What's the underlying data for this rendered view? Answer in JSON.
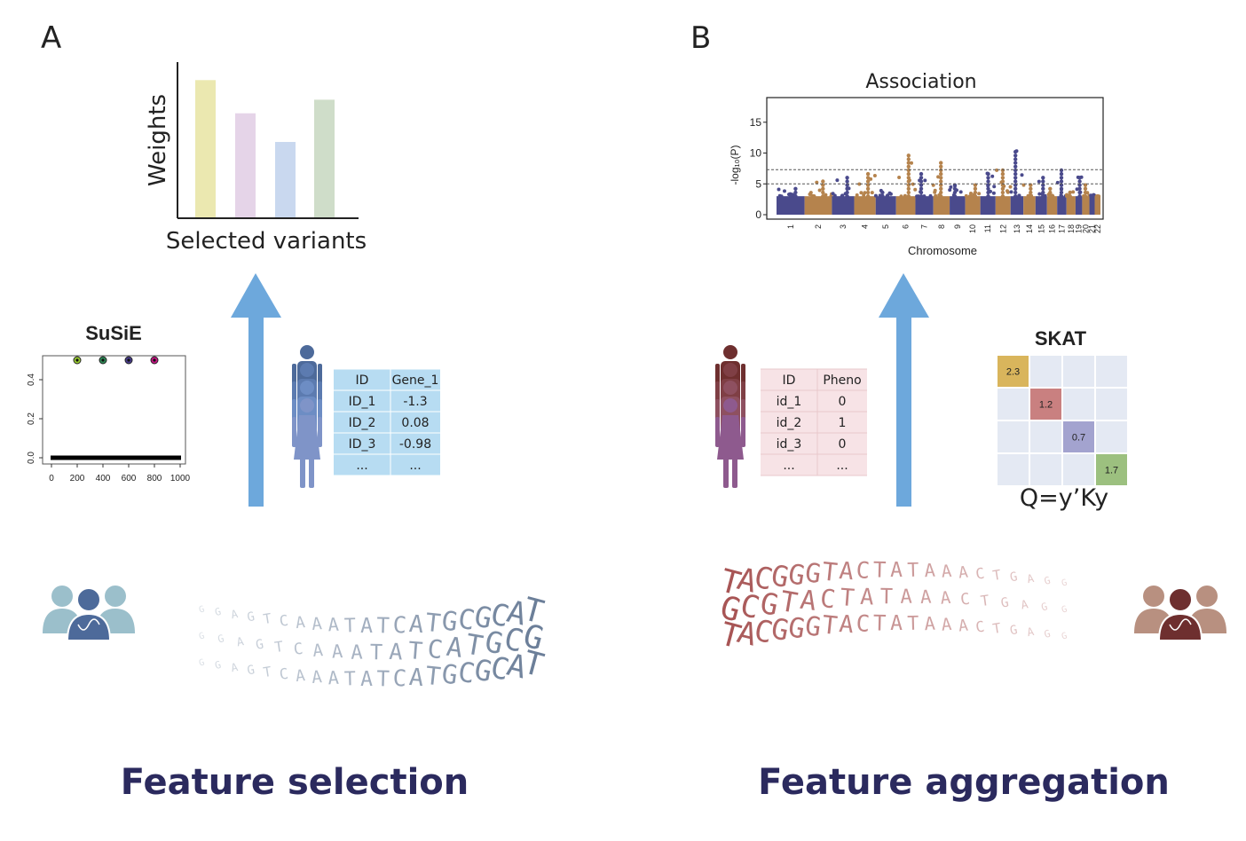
{
  "panels": {
    "a": {
      "letter": "A",
      "title": "Feature selection",
      "weights_chart": {
        "ylabel": "Weights",
        "xlabel": "Selected variants",
        "bars": [
          {
            "value": 0.91,
            "color": "#ebe8b0"
          },
          {
            "value": 0.69,
            "color": "#e5d4e8"
          },
          {
            "value": 0.5,
            "color": "#c9d8ef"
          },
          {
            "value": 0.78,
            "color": "#cfddc9"
          }
        ]
      },
      "susie_plot": {
        "title": "SuSiE",
        "yticks": [
          "0.0",
          "0.2",
          "0.4"
        ],
        "xticks": [
          "0",
          "200",
          "400",
          "600",
          "800",
          "1000"
        ],
        "xlim": [
          0,
          1000
        ],
        "ylim": [
          0,
          0.5
        ],
        "signals": [
          {
            "x": 200,
            "y": 0.5,
            "color": "#9acd32"
          },
          {
            "x": 400,
            "y": 0.5,
            "color": "#2e8b57"
          },
          {
            "x": 600,
            "y": 0.5,
            "color": "#483d8b"
          },
          {
            "x": 800,
            "y": 0.5,
            "color": "#c71585"
          }
        ]
      },
      "table": {
        "headers": [
          "ID",
          "Gene_1"
        ],
        "rows": [
          [
            "ID_1",
            "-1.3"
          ],
          [
            "ID_2",
            "0.08"
          ],
          [
            "ID_3",
            "-0.98"
          ],
          [
            "...",
            "..."
          ]
        ],
        "fill": "#b7dcf2"
      },
      "person_colors": [
        "#4d6a9a",
        "#5c7bb0",
        "#6d8dc4",
        "#7f94c8"
      ],
      "arrow_color": "#6da8dc",
      "dna_lines": [
        "GGAGTCAAATATCATGCGCAT",
        "GGAGTCAAATATCATGCG",
        "GGAGTCAAATATCATGCGCAT"
      ],
      "dna_color": "#6c7f99"
    },
    "b": {
      "letter": "B",
      "title": "Feature aggregation",
      "manhattan": {
        "title": "Association",
        "ylabel": "-log₁₀(P)",
        "xlabel": "Chromosome",
        "yticks": [
          "0",
          "5",
          "10",
          "15"
        ],
        "ylim": [
          0,
          19
        ],
        "chromosomes": [
          "1",
          "2",
          "3",
          "4",
          "5",
          "6",
          "7",
          "8",
          "9",
          "10",
          "11",
          "12",
          "13",
          "14",
          "15",
          "16",
          "17",
          "18",
          "19",
          "20",
          "21",
          "22"
        ],
        "peaks": [
          4.5,
          5.5,
          6.5,
          7,
          4,
          10,
          7,
          8.5,
          5,
          5,
          7,
          7.5,
          10.5,
          5,
          6,
          4.5,
          7.5,
          4,
          6.5,
          5,
          3.5,
          3
        ],
        "threshold_lines": [
          5,
          7.3
        ],
        "colors": [
          "#4a4a8c",
          "#b5834d"
        ]
      },
      "skat": {
        "title": "SKAT",
        "diag": [
          {
            "value": "2.3",
            "color": "#d9b55c"
          },
          {
            "value": "1.2",
            "color": "#c98080"
          },
          {
            "value": "0.7",
            "color": "#a3a3cf"
          },
          {
            "value": "1.7",
            "color": "#9cc07f"
          }
        ],
        "offdiag_color": "#e4e9f3",
        "formula": "Q=y’Ky"
      },
      "table": {
        "headers": [
          "ID",
          "Pheno"
        ],
        "rows": [
          [
            "id_1",
            "0"
          ],
          [
            "id_2",
            "1"
          ],
          [
            "id_3",
            "0"
          ],
          [
            "...",
            "..."
          ]
        ],
        "fill": "#f7e3e6"
      },
      "person_colors": [
        "#6e2f2f",
        "#7f3f45",
        "#8e5060",
        "#8e5a8e"
      ],
      "arrow_color": "#6da8dc",
      "dna_lines": [
        "TACGGGTACTATAAACTGAGG",
        "GCGTACTATAAACTGAGG",
        "TACGGGTACTATAAACTGAGG"
      ],
      "dna_color": "#a85555"
    }
  }
}
